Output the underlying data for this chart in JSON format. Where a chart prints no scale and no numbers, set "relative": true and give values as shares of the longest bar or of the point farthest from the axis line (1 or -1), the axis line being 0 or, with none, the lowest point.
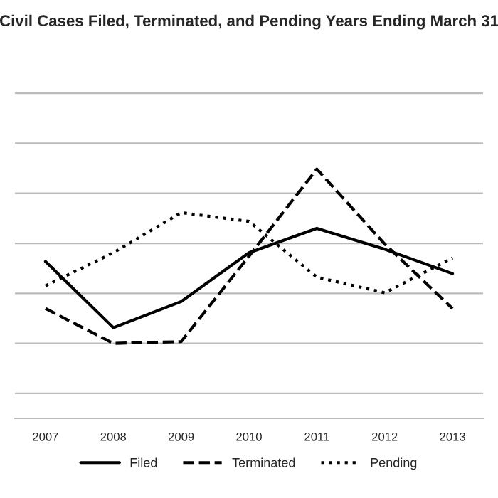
{
  "chart_data": {
    "type": "line",
    "title": "Civil Cases Filed, Terminated, and Pending Years Ending March 31",
    "categories": [
      "2007",
      "2008",
      "2009",
      "2010",
      "2011",
      "2012",
      "2013"
    ],
    "relative": true,
    "grid": "y",
    "legend": "bottom",
    "tick_labels": "x",
    "series": [
      {
        "name": "Filed",
        "color": "#000000",
        "line_style": "solid",
        "values": [
          0.47,
          0.09,
          0.24,
          0.52,
          0.66,
          0.54,
          0.4
        ]
      },
      {
        "name": "Terminated",
        "color": "#000000",
        "line_style": "dashed",
        "values": [
          0.2,
          0.0,
          0.01,
          0.5,
          1.0,
          0.57,
          0.2
        ]
      },
      {
        "name": "Pending",
        "color": "#000000",
        "line_style": "dotted",
        "values": [
          0.33,
          0.52,
          0.75,
          0.7,
          0.38,
          0.29,
          0.49
        ]
      }
    ]
  }
}
